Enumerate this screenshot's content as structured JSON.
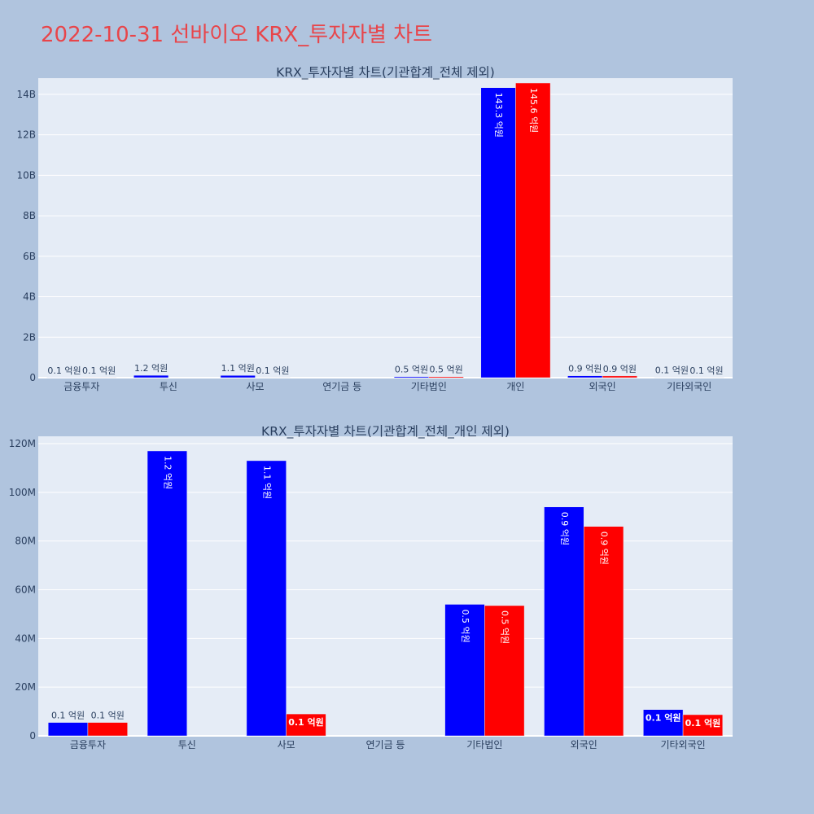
{
  "page_title": "2022-10-31 선바이오 KRX_투자자별 차트",
  "colors": {
    "series_a": "#0000ff",
    "series_b": "#ff0000",
    "plot_bg": "#e5ecf6",
    "paper_bg": "#b0c4de",
    "title": "#e8454a"
  },
  "chart_data": [
    {
      "type": "bar",
      "title": "KRX_투자자별 차트(기관합계_전체 제외)",
      "categories": [
        "금융투자",
        "투신",
        "사모",
        "연기금 등",
        "기타법인",
        "개인",
        "외국인",
        "기타외국인"
      ],
      "ylim": [
        0,
        14800000000
      ],
      "yticks": [
        0,
        2000000000,
        4000000000,
        6000000000,
        8000000000,
        10000000000,
        12000000000,
        14000000000
      ],
      "ytick_labels": [
        "0",
        "2B",
        "4B",
        "6B",
        "8B",
        "10B",
        "12B",
        "14B"
      ],
      "grid": true,
      "series": [
        {
          "values": [
            5000000,
            117000000,
            113000000,
            0,
            54000000,
            14330000000,
            94000000,
            11000000
          ],
          "labels": [
            "0.1 억원",
            "1.2 억원",
            "1.1 억원",
            "",
            "0.5 억원",
            "143.3 억원",
            "0.9 억원",
            "0.1 억원"
          ]
        },
        {
          "values": [
            5000000,
            0,
            9000000,
            0,
            53000000,
            14560000000,
            86000000,
            9000000
          ],
          "labels": [
            "0.1 억원",
            "",
            "0.1 억원",
            "",
            "0.5 억원",
            "145.6 억원",
            "0.9 억원",
            "0.1 억원"
          ]
        }
      ]
    },
    {
      "type": "bar",
      "title": "KRX_투자자별 차트(기관합계_전체_개인 제외)",
      "categories": [
        "금융투자",
        "투신",
        "사모",
        "연기금 등",
        "기타법인",
        "외국인",
        "기타외국인"
      ],
      "ylim": [
        0,
        123000000
      ],
      "yticks": [
        0,
        20000000,
        40000000,
        60000000,
        80000000,
        100000000,
        120000000
      ],
      "ytick_labels": [
        "0",
        "20M",
        "40M",
        "60M",
        "80M",
        "100M",
        "120M"
      ],
      "grid": true,
      "series": [
        {
          "values": [
            5500000,
            117000000,
            113000000,
            0,
            54000000,
            94000000,
            10800000
          ],
          "labels": [
            "0.1 억원",
            "1.2 억원",
            "1.1 억원",
            "",
            "0.5 억원",
            "0.9 억원",
            "0.1 억원"
          ]
        },
        {
          "values": [
            5500000,
            0,
            9000000,
            0,
            53500000,
            86000000,
            8700000
          ],
          "labels": [
            "0.1 억원",
            "",
            "0.1 억원",
            "",
            "0.5 억원",
            "0.9 억원",
            "0.1 억원"
          ]
        }
      ]
    }
  ]
}
